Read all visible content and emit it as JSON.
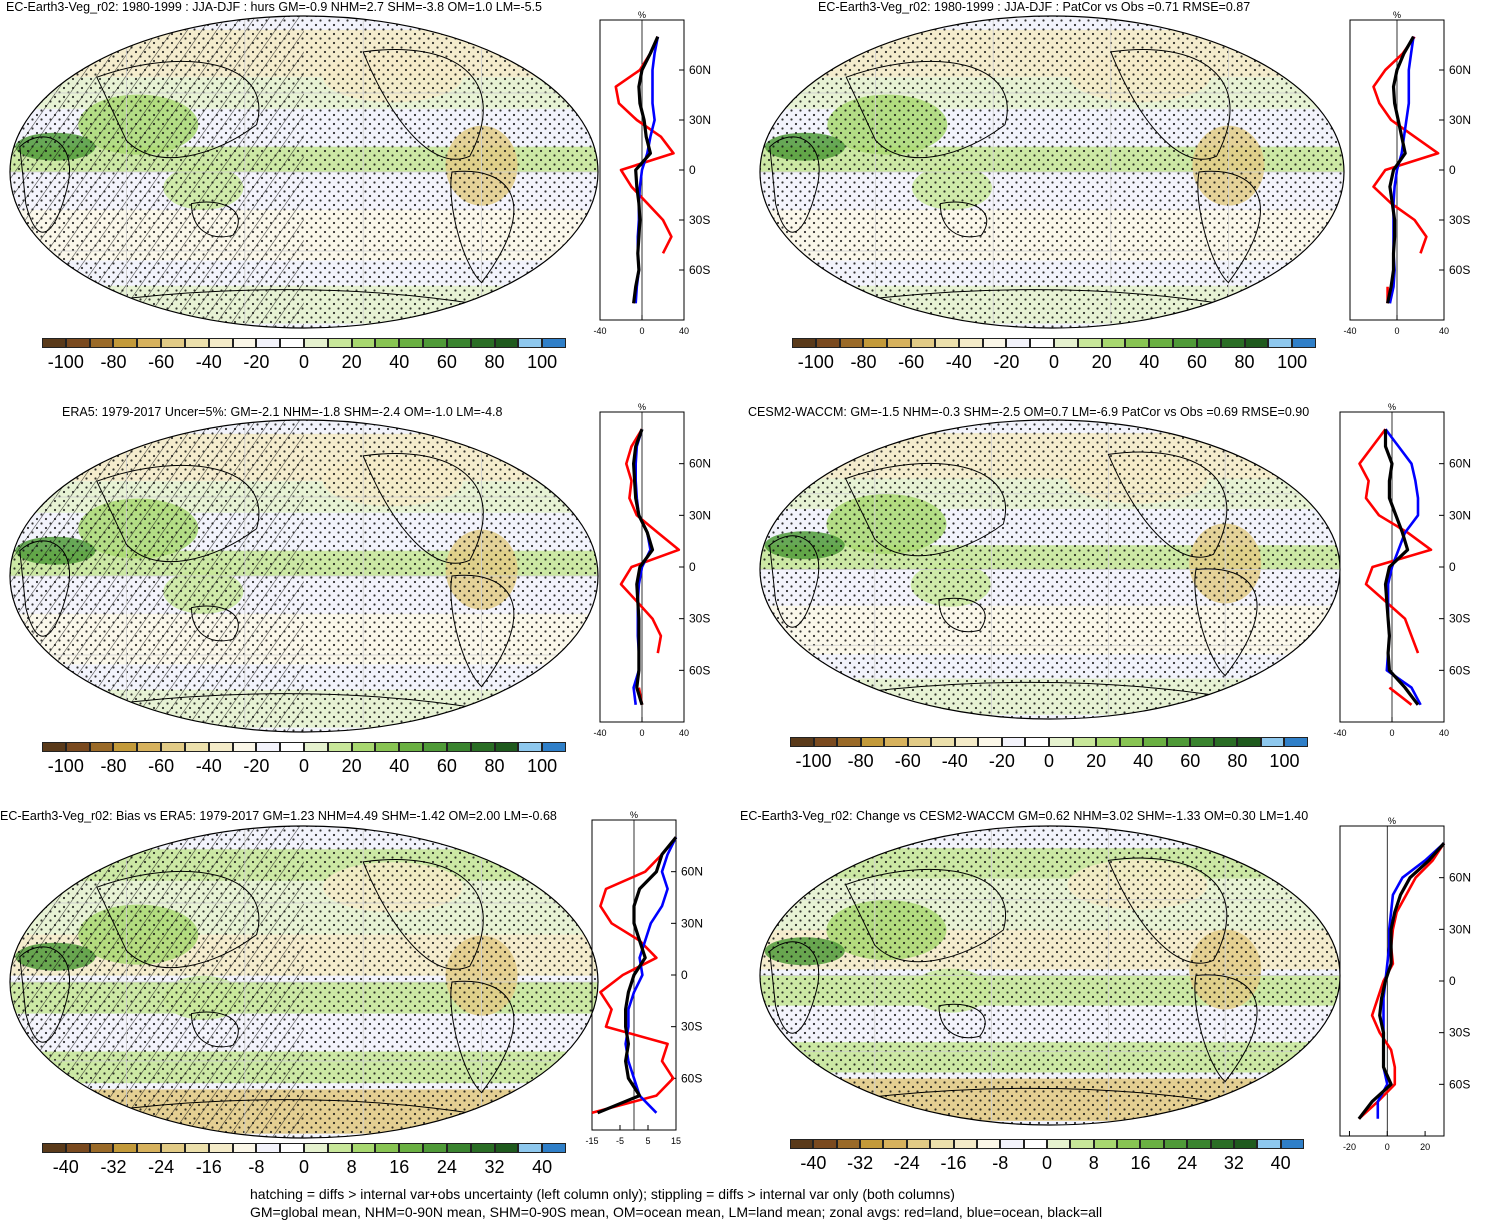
{
  "colors": {
    "land_mean": "#ff0000",
    "ocean_mean": "#0000ff",
    "all_mean": "#000000",
    "scale_diff": [
      "#5a3a1a",
      "#7a4a1f",
      "#9a6a28",
      "#c39a3a",
      "#d7b25d",
      "#e2cb86",
      "#ece0ac",
      "#f4ebc8",
      "#fbf7e8",
      "#f3f3fb",
      "#ffffff",
      "#e6f2cf",
      "#c8e79a",
      "#a8d870",
      "#88c453",
      "#6ab042",
      "#4f9a38",
      "#3a842f",
      "#2a6d25",
      "#1f5a1e",
      "#8ec8ee",
      "#2f7fc8"
    ],
    "scale_bias": [
      "#5a3a1a",
      "#7a4a1f",
      "#9a6a28",
      "#c39a3a",
      "#d7b25d",
      "#e2cb86",
      "#ece0ac",
      "#f4ebc8",
      "#fbf7e8",
      "#f3f3fb",
      "#ffffff",
      "#e6f2cf",
      "#c8e79a",
      "#a8d870",
      "#88c453",
      "#6ab042",
      "#4f9a38",
      "#3a842f",
      "#2a6d25",
      "#1f5a1e",
      "#8ec8ee",
      "#2f7fc8"
    ]
  },
  "panels": [
    {
      "title": "EC-Earth3-Veg_r02: 1980-1999 : JJA-DJF : hurs GM=-0.9 NHM=2.7 SHM=-3.8 OM=1.0 LM=-5.5",
      "hatched": true,
      "colorbar_labels": [
        "-100",
        "-80",
        "-60",
        "-40",
        "-20",
        "0",
        "20",
        "40",
        "60",
        "80",
        "100"
      ],
      "zonal_xlabels": [
        "-40",
        "0",
        "40"
      ]
    },
    {
      "title": "EC-Earth3-Veg_r02: 1980-1999 : JJA-DJF : PatCor vs Obs =0.71 RMSE=0.87",
      "hatched": false,
      "colorbar_labels": [
        "-100",
        "-80",
        "-60",
        "-40",
        "-20",
        "0",
        "20",
        "40",
        "60",
        "80",
        "100"
      ],
      "zonal_xlabels": [
        "-40",
        "0",
        "40"
      ]
    },
    {
      "title": "ERA5: 1979-2017 Uncer=5%: GM=-2.1 NHM=-1.8 SHM=-2.4 OM=-1.0 LM=-4.8",
      "hatched": true,
      "colorbar_labels": [
        "-100",
        "-80",
        "-60",
        "-40",
        "-20",
        "0",
        "20",
        "40",
        "60",
        "80",
        "100"
      ],
      "zonal_xlabels": [
        "-40",
        "0",
        "40"
      ]
    },
    {
      "title": "CESM2-WACCM: GM=-1.5 NHM=-0.3 SHM=-2.5 OM=0.7 LM=-6.9 PatCor vs Obs =0.69 RMSE=0.90",
      "hatched": false,
      "colorbar_labels": [
        "-100",
        "-80",
        "-60",
        "-40",
        "-20",
        "0",
        "20",
        "40",
        "60",
        "80",
        "100"
      ],
      "zonal_xlabels": [
        "-40",
        "0",
        "40"
      ]
    },
    {
      "title": "EC-Earth3-Veg_r02: Bias vs ERA5: 1979-2017 GM=1.23 NHM=4.49 SHM=-1.42 OM=2.00 LM=-0.68",
      "hatched": true,
      "colorbar_labels": [
        "-40",
        "-32",
        "-24",
        "-16",
        "-8",
        "0",
        "8",
        "16",
        "24",
        "32",
        "40"
      ],
      "zonal_xlabels": [
        "-15",
        "-5",
        "5",
        "15"
      ]
    },
    {
      "title": "EC-Earth3-Veg_r02: Change vs CESM2-WACCM GM=0.62 NHM=3.02 SHM=-1.33 OM=0.30 LM=1.40",
      "hatched": false,
      "colorbar_labels": [
        "-40",
        "-32",
        "-24",
        "-16",
        "-8",
        "0",
        "8",
        "16",
        "24",
        "32",
        "40"
      ],
      "zonal_xlabels": [
        "-20",
        "0",
        "20"
      ]
    }
  ],
  "zonal_common": {
    "unit": "%",
    "lat_labels": [
      "60N",
      "30N",
      "0",
      "30S",
      "60S"
    ]
  },
  "footnote": {
    "line1": "hatching = diffs > internal var+obs uncertainty (left column only); stippling = diffs > internal var only (both columns)",
    "line2": "GM=global mean, NHM=0-90N mean, SHM=0-90S mean, OM=ocean mean, LM=land mean; zonal avgs: red=land, blue=ocean, black=all"
  },
  "chart_data": [
    {
      "type": "line",
      "title": "EC-Earth3-Veg_r02: 1980-1999 : JJA-DJF : hurs GM=-0.9 NHM=2.7 SHM=-3.8 OM=1.0 LM=-5.5",
      "xlabel": "%",
      "xlim": [
        -40,
        40
      ],
      "lat": [
        80,
        70,
        60,
        50,
        40,
        30,
        20,
        10,
        0,
        -10,
        -20,
        -30,
        -40,
        -50,
        -60,
        -70,
        -80
      ],
      "series": [
        {
          "name": "land",
          "values": [
            15,
            8,
            -2,
            -25,
            -22,
            -5,
            18,
            30,
            -20,
            -10,
            5,
            20,
            28,
            20,
            null,
            -5,
            -8
          ]
        },
        {
          "name": "ocean",
          "values": [
            15,
            12,
            10,
            10,
            10,
            12,
            8,
            5,
            0,
            -2,
            -3,
            -3,
            -4,
            -4,
            -3,
            -5,
            -6
          ]
        },
        {
          "name": "all",
          "values": [
            15,
            8,
            0,
            -3,
            -2,
            2,
            4,
            8,
            -6,
            -5,
            -3,
            -2,
            -3,
            -4,
            -3,
            -6,
            -8
          ]
        }
      ]
    },
    {
      "type": "line",
      "title": "EC-Earth3-Veg_r02: 1980-1999 : JJA-DJF : PatCor vs Obs =0.71 RMSE=0.87",
      "xlabel": "%",
      "xlim": [
        -40,
        40
      ],
      "lat": [
        80,
        70,
        60,
        50,
        40,
        30,
        20,
        10,
        0,
        -10,
        -20,
        -30,
        -40,
        -50,
        -60,
        -70,
        -80
      ],
      "series": [
        {
          "name": "land",
          "values": [
            15,
            5,
            -10,
            -20,
            -15,
            -5,
            15,
            35,
            -10,
            -20,
            -5,
            15,
            25,
            20,
            null,
            -8,
            -8
          ]
        },
        {
          "name": "ocean",
          "values": [
            14,
            12,
            10,
            10,
            10,
            8,
            6,
            4,
            0,
            -2,
            -3,
            -3,
            -3,
            -3,
            -2,
            -3,
            -6
          ]
        },
        {
          "name": "all",
          "values": [
            14,
            6,
            0,
            -3,
            -2,
            1,
            4,
            7,
            -3,
            -6,
            -4,
            -2,
            -2,
            -3,
            -3,
            -5,
            -8
          ]
        }
      ]
    },
    {
      "type": "line",
      "title": "ERA5: 1979-2017 Uncer=5%: GM=-2.1 NHM=-1.8 SHM=-2.4 OM=-1.0 LM=-4.8",
      "xlabel": "%",
      "xlim": [
        -40,
        40
      ],
      "lat": [
        80,
        70,
        60,
        50,
        40,
        30,
        20,
        10,
        0,
        -10,
        -20,
        -30,
        -40,
        -50,
        -60,
        -70,
        -80
      ],
      "series": [
        {
          "name": "land",
          "values": [
            0,
            -10,
            -15,
            -10,
            -12,
            -5,
            15,
            35,
            -10,
            -20,
            -5,
            10,
            18,
            15,
            null,
            -3,
            0
          ]
        },
        {
          "name": "ocean",
          "values": [
            0,
            -5,
            -6,
            -6,
            -5,
            -3,
            5,
            8,
            0,
            -3,
            -4,
            -4,
            -4,
            -3,
            -3,
            -8,
            -6
          ]
        },
        {
          "name": "all",
          "values": [
            0,
            -6,
            -8,
            -7,
            -6,
            -3,
            5,
            10,
            -2,
            -5,
            -4,
            -3,
            -3,
            -3,
            -3,
            -5,
            0
          ]
        }
      ]
    },
    {
      "type": "line",
      "title": "CESM2-WACCM: GM=-1.5 NHM=-0.3 SHM=-2.5 OM=0.7 LM=-6.9 PatCor vs Obs =0.69 RMSE=0.90",
      "xlabel": "%",
      "xlim": [
        -40,
        40
      ],
      "lat": [
        80,
        70,
        60,
        50,
        40,
        30,
        20,
        10,
        0,
        -10,
        -20,
        -30,
        -40,
        -50,
        -60,
        -70,
        -80
      ],
      "series": [
        {
          "name": "land",
          "values": [
            -5,
            -15,
            -25,
            -18,
            -20,
            -10,
            12,
            30,
            -15,
            -20,
            -5,
            10,
            15,
            20,
            null,
            -2,
            15
          ]
        },
        {
          "name": "ocean",
          "values": [
            -5,
            5,
            15,
            18,
            20,
            20,
            10,
            5,
            0,
            -3,
            -3,
            -3,
            -2,
            -3,
            -4,
            15,
            22
          ]
        },
        {
          "name": "all",
          "values": [
            -5,
            -5,
            0,
            -2,
            -2,
            3,
            8,
            12,
            -2,
            -5,
            -4,
            -3,
            -2,
            -3,
            -2,
            10,
            20
          ]
        }
      ]
    },
    {
      "type": "line",
      "title": "EC-Earth3-Veg_r02: Bias vs ERA5: 1979-2017 GM=1.23 NHM=4.49 SHM=-1.42 OM=2.00 LM=-0.68",
      "xlabel": "%",
      "xlim": [
        -15,
        15
      ],
      "lat": [
        80,
        70,
        60,
        50,
        40,
        30,
        20,
        10,
        0,
        -10,
        -20,
        -30,
        -40,
        -50,
        -60,
        -70,
        -80
      ],
      "series": [
        {
          "name": "land",
          "values": [
            15,
            10,
            4,
            -10,
            -12,
            -8,
            2,
            8,
            -4,
            -12,
            -8,
            -10,
            12,
            10,
            14,
            8,
            -15
          ]
        },
        {
          "name": "ocean",
          "values": [
            15,
            12,
            10,
            12,
            10,
            6,
            4,
            2,
            3,
            0,
            -2,
            -2,
            -3,
            -2,
            0,
            2,
            8
          ]
        },
        {
          "name": "all",
          "values": [
            15,
            10,
            8,
            2,
            0,
            0,
            2,
            4,
            0,
            -2,
            -3,
            -3,
            -2,
            -3,
            -2,
            2,
            -13
          ]
        }
      ]
    },
    {
      "type": "line",
      "title": "EC-Earth3-Veg_r02: Change vs CESM2-WACCM GM=0.62 NHM=3.02 SHM=-1.33 OM=0.30 LM=1.40",
      "xlabel": "%",
      "xlim": [
        -25,
        30
      ],
      "lat": [
        80,
        70,
        60,
        50,
        40,
        30,
        20,
        10,
        0,
        -10,
        -20,
        -30,
        -40,
        -50,
        -60,
        -70,
        -80
      ],
      "series": [
        {
          "name": "land",
          "values": [
            30,
            24,
            15,
            10,
            5,
            3,
            2,
            3,
            -2,
            -5,
            -8,
            -4,
            2,
            4,
            4,
            -5,
            -15
          ]
        },
        {
          "name": "ocean",
          "values": [
            30,
            20,
            8,
            3,
            2,
            1,
            1,
            0,
            -1,
            -2,
            -2,
            -2,
            -2,
            -2,
            0,
            -5,
            -5
          ]
        },
        {
          "name": "all",
          "values": [
            30,
            22,
            12,
            7,
            4,
            2,
            2,
            2,
            -1,
            -3,
            -4,
            -2,
            -2,
            -2,
            2,
            -8,
            -15
          ]
        }
      ]
    }
  ]
}
